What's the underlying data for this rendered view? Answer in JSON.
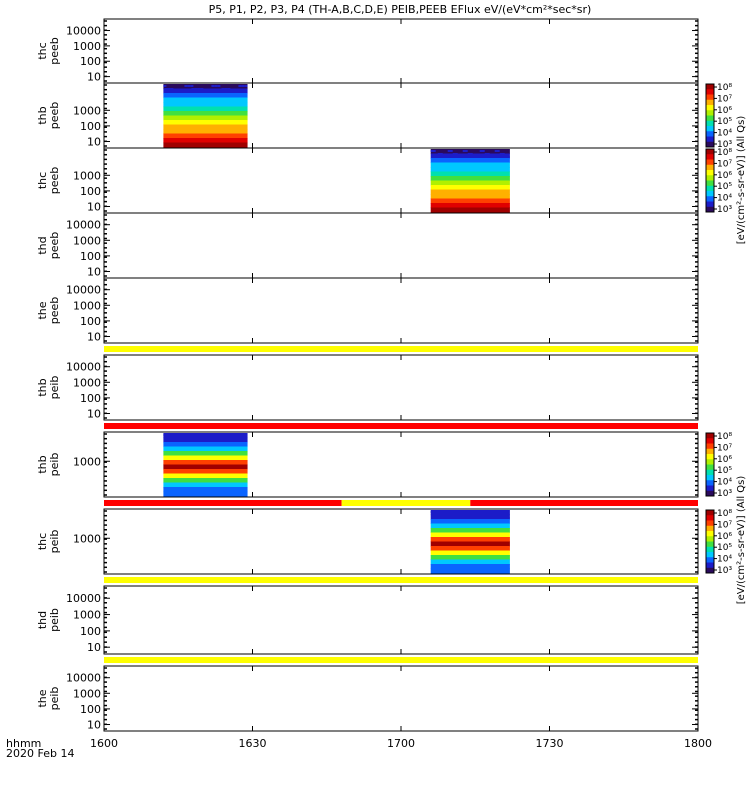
{
  "figure": {
    "title": "P5, P1, P2, P3, P4 (TH-A,B,C,D,E) PEIB,PEEB EFlux eV/(eV*cm²*sec*sr)",
    "time_axis_label": "hhmm",
    "date_label": "2020 Feb 14",
    "time_ticks": [
      "1600",
      "1630",
      "1700",
      "1730",
      "1800"
    ],
    "colorbar_label": "[eV/(cm²-s-sr-eV)] (All Qs)"
  },
  "chart_data": [
    {
      "type": "heatmap",
      "ylabel": [
        "thc",
        "peeb"
      ],
      "yticks": [
        "10",
        "100",
        "1000",
        "10000"
      ],
      "log_y": true,
      "data_present": false
    },
    {
      "type": "heatmap",
      "ylabel": [
        "thb",
        "peeb"
      ],
      "yticks": [
        "10",
        "100",
        "1000"
      ],
      "log_y": true,
      "data_present": true,
      "time_range": [
        "16:12",
        "16:29"
      ],
      "colorbar_ticks": [
        "10³",
        "10⁴",
        "10⁵",
        "10⁶",
        "10⁷",
        "10⁸"
      ]
    },
    {
      "type": "heatmap",
      "ylabel": [
        "thc",
        "peeb"
      ],
      "yticks": [
        "10",
        "100",
        "1000"
      ],
      "log_y": true,
      "data_present": true,
      "time_range": [
        "17:06",
        "17:22"
      ],
      "colorbar_ticks": [
        "10³",
        "10⁴",
        "10⁵",
        "10⁶",
        "10⁷",
        "10⁸"
      ]
    },
    {
      "type": "heatmap",
      "ylabel": [
        "thd",
        "peeb"
      ],
      "yticks": [
        "10",
        "100",
        "1000",
        "10000"
      ],
      "log_y": true,
      "data_present": false
    },
    {
      "type": "heatmap",
      "ylabel": [
        "the",
        "peeb"
      ],
      "yticks": [
        "10",
        "100",
        "1000",
        "10000"
      ],
      "log_y": true,
      "data_present": false
    },
    {
      "type": "heatmap",
      "ylabel": [
        "thb",
        "peib"
      ],
      "yticks": [
        "10",
        "100",
        "1000",
        "10000"
      ],
      "log_y": true,
      "data_present": false
    },
    {
      "type": "heatmap",
      "ylabel": [
        "thb",
        "peib"
      ],
      "yticks": [
        "1000"
      ],
      "log_y": true,
      "data_present": true,
      "time_range": [
        "16:12",
        "16:29"
      ],
      "colorbar_ticks": [
        "10³",
        "10⁴",
        "10⁵",
        "10⁶",
        "10⁷",
        "10⁸"
      ]
    },
    {
      "type": "heatmap",
      "ylabel": [
        "thc",
        "peib"
      ],
      "yticks": [
        "1000"
      ],
      "log_y": true,
      "data_present": true,
      "time_range": [
        "17:06",
        "17:22"
      ],
      "colorbar_ticks": [
        "10³",
        "10⁴",
        "10⁵",
        "10⁶",
        "10⁷",
        "10⁸"
      ]
    },
    {
      "type": "heatmap",
      "ylabel": [
        "thd",
        "peib"
      ],
      "yticks": [
        "10",
        "100",
        "1000",
        "10000"
      ],
      "log_y": true,
      "data_present": false
    },
    {
      "type": "heatmap",
      "ylabel": [
        "the",
        "peib"
      ],
      "yticks": [
        "10",
        "100",
        "1000",
        "10000"
      ],
      "log_y": true,
      "data_present": false
    }
  ],
  "flag_bars": [
    {
      "after_panel": 4,
      "segments": [
        {
          "from": "16:00",
          "to": "18:00",
          "color": "#ffff00"
        }
      ]
    },
    {
      "after_panel": 5,
      "segments": [
        {
          "from": "16:00",
          "to": "18:00",
          "color": "#ff0000"
        }
      ]
    },
    {
      "after_panel": 6,
      "segments": [
        {
          "from": "16:00",
          "to": "16:48",
          "color": "#ff0000"
        },
        {
          "from": "16:48",
          "to": "17:14",
          "color": "#ffff00"
        },
        {
          "from": "17:14",
          "to": "18:00",
          "color": "#ff0000"
        }
      ]
    },
    {
      "after_panel": 7,
      "segments": [
        {
          "from": "16:00",
          "to": "18:00",
          "color": "#ffff00"
        }
      ]
    },
    {
      "after_panel": 8,
      "segments": [
        {
          "from": "16:00",
          "to": "18:00",
          "color": "#ffff00"
        }
      ]
    }
  ],
  "colors": {
    "colormap": [
      "#2a0a5c",
      "#1c1cc8",
      "#0a64ff",
      "#00c8ff",
      "#00e0b0",
      "#40e040",
      "#b0f000",
      "#ffff00",
      "#ffb000",
      "#ff4000",
      "#e00000",
      "#a00000"
    ]
  }
}
